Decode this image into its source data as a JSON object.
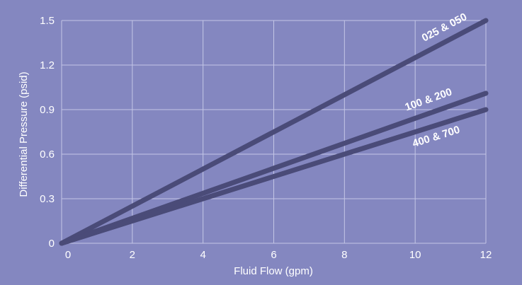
{
  "chart_data": {
    "type": "line",
    "xlabel": "Fluid Flow (gpm)",
    "ylabel": "Differential Pressure (psid)",
    "xlim": [
      0,
      12
    ],
    "ylim": [
      0,
      1.5
    ],
    "x_ticks": [
      0,
      2,
      4,
      6,
      8,
      10,
      12
    ],
    "y_ticks": [
      0,
      0.3,
      0.6,
      0.9,
      1.2,
      1.5
    ],
    "x_tick_labels": [
      "0",
      "2",
      "4",
      "6",
      "8",
      "10",
      "12"
    ],
    "y_tick_labels": [
      "0",
      "0.3",
      "0.6",
      "0.9",
      "1.2",
      "1.5"
    ],
    "grid": true,
    "legend": "none",
    "series": [
      {
        "name": "025 & 050",
        "x": [
          0,
          12
        ],
        "y": [
          0,
          1.5
        ]
      },
      {
        "name": "100 & 200",
        "x": [
          0,
          12
        ],
        "y": [
          0,
          1.01
        ]
      },
      {
        "name": "400 & 700",
        "x": [
          0,
          12
        ],
        "y": [
          0,
          0.9
        ]
      }
    ]
  },
  "colors": {
    "background": "#8487c0",
    "plot_area": "#8487c0",
    "grid": "#c4c6e6",
    "line": "#4a4b78",
    "text": "#ffffff"
  }
}
